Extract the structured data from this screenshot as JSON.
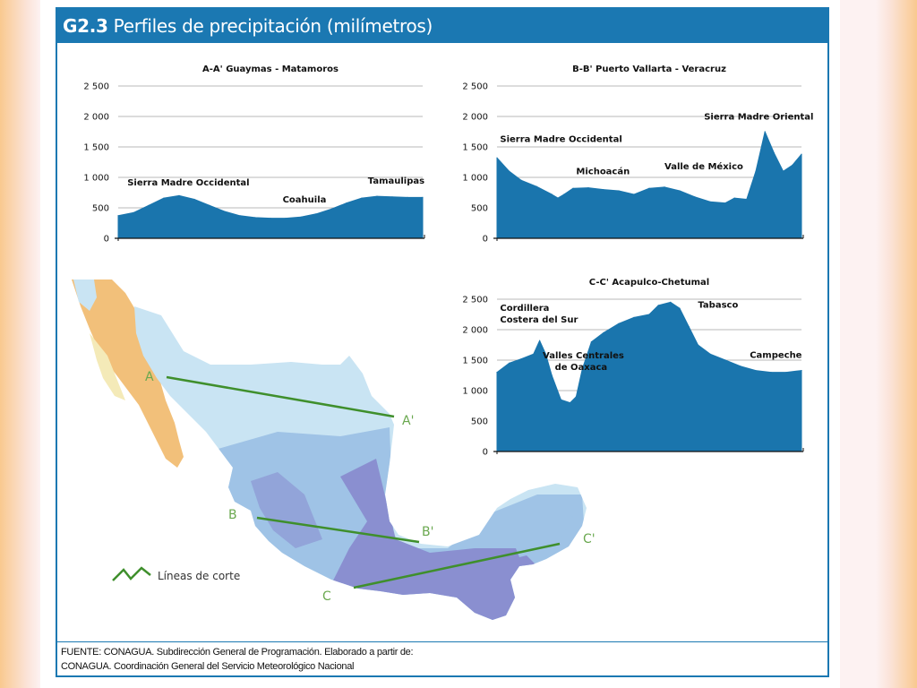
{
  "figure": {
    "label": "G2.3",
    "title": "Perfiles de precipitación (milímetros)"
  },
  "chart_data": [
    {
      "id": "aa",
      "type": "area",
      "title": "A-A' Guaymas - Matamoros",
      "ylim": [
        0,
        2500
      ],
      "yticks": [
        0,
        500,
        1000,
        1500,
        2000,
        2500
      ],
      "ytick_labels": [
        "0",
        "500",
        "1 000",
        "1 500",
        "2 000",
        "2 500"
      ],
      "xlim": [
        0,
        1
      ],
      "color": "#1a75ad",
      "x": [
        0,
        0.05,
        0.1,
        0.15,
        0.2,
        0.25,
        0.3,
        0.35,
        0.4,
        0.45,
        0.5,
        0.55,
        0.6,
        0.65,
        0.7,
        0.75,
        0.8,
        0.85,
        0.9,
        0.95,
        1.0
      ],
      "values": [
        370,
        420,
        540,
        660,
        700,
        640,
        540,
        440,
        370,
        340,
        330,
        330,
        350,
        400,
        480,
        580,
        660,
        690,
        680,
        670,
        670
      ],
      "annotations": [
        {
          "text": "Sierra Madre Occidental",
          "x": 0.03,
          "y": 870
        },
        {
          "text": "Coahuila",
          "x": 0.54,
          "y": 590
        },
        {
          "text": "Tamaulipas",
          "x": 0.82,
          "y": 900
        }
      ]
    },
    {
      "id": "bb",
      "type": "area",
      "title": "B-B' Puerto Vallarta - Veracruz",
      "ylim": [
        0,
        2500
      ],
      "yticks": [
        0,
        500,
        1000,
        1500,
        2000,
        2500
      ],
      "ytick_labels": [
        "0",
        "500",
        "1 000",
        "1 500",
        "2 000",
        "2 500"
      ],
      "xlim": [
        0,
        1
      ],
      "color": "#1a75ad",
      "x": [
        0,
        0.04,
        0.08,
        0.13,
        0.18,
        0.2,
        0.22,
        0.25,
        0.3,
        0.35,
        0.4,
        0.45,
        0.5,
        0.55,
        0.6,
        0.65,
        0.7,
        0.75,
        0.78,
        0.82,
        0.85,
        0.88,
        0.91,
        0.94,
        0.97,
        1.0
      ],
      "values": [
        1320,
        1100,
        950,
        850,
        720,
        660,
        720,
        820,
        830,
        800,
        780,
        720,
        820,
        840,
        780,
        680,
        600,
        580,
        660,
        640,
        1100,
        1750,
        1400,
        1100,
        1200,
        1380
      ],
      "annotations": [
        {
          "text": "Sierra Madre Occidental",
          "x": 0.01,
          "y": 1580
        },
        {
          "text": "Michoacán",
          "x": 0.26,
          "y": 1050
        },
        {
          "text": "Valle de México",
          "x": 0.55,
          "y": 1130
        },
        {
          "text": "Sierra Madre Oriental",
          "x": 0.68,
          "y": 1950
        }
      ]
    },
    {
      "id": "cc",
      "type": "area",
      "title": "C-C' Acapulco-Chetumal",
      "ylim": [
        0,
        2500
      ],
      "yticks": [
        0,
        500,
        1000,
        1500,
        2000,
        2500
      ],
      "ytick_labels": [
        "0",
        "500",
        "1 000",
        "1 500",
        "2 000",
        "2 500"
      ],
      "xlim": [
        0,
        1
      ],
      "color": "#1a75ad",
      "x": [
        0,
        0.04,
        0.08,
        0.12,
        0.14,
        0.16,
        0.18,
        0.21,
        0.24,
        0.26,
        0.28,
        0.31,
        0.35,
        0.4,
        0.45,
        0.5,
        0.53,
        0.57,
        0.6,
        0.63,
        0.66,
        0.7,
        0.75,
        0.8,
        0.85,
        0.9,
        0.95,
        1.0
      ],
      "values": [
        1300,
        1450,
        1520,
        1600,
        1820,
        1600,
        1250,
        850,
        800,
        900,
        1350,
        1800,
        1950,
        2100,
        2200,
        2250,
        2400,
        2450,
        2350,
        2050,
        1750,
        1600,
        1500,
        1400,
        1330,
        1300,
        1300,
        1330
      ],
      "annotations": [
        {
          "text": "Cordillera",
          "x": 0.01,
          "y": 2310
        },
        {
          "text": "Costera del Sur",
          "x": 0.01,
          "y": 2120
        },
        {
          "text": "Valles Centrales",
          "x": 0.15,
          "y": 1530
        },
        {
          "text": "de Oaxaca",
          "x": 0.19,
          "y": 1340
        },
        {
          "text": "Tabasco",
          "x": 0.66,
          "y": 2360
        },
        {
          "text": "Campeche",
          "x": 0.83,
          "y": 1540
        }
      ]
    }
  ],
  "map": {
    "cut_labels": [
      "A",
      "A'",
      "B",
      "B'",
      "C",
      "C'"
    ],
    "legend_label": "Líneas de corte",
    "colors": {
      "dry": "#f2c07a",
      "semi": "#f4eab8",
      "light": "#c9e4f3",
      "mid": "#9fc3e6",
      "wet": "#8a8fd0",
      "line": "#3f8f2c"
    }
  },
  "source": {
    "line1": "FUENTE: CONAGUA. Subdirección General de Programación. Elaborado a partir de:",
    "line2": "CONAGUA. Coordinación General del Servicio Meteorológico Nacional"
  }
}
